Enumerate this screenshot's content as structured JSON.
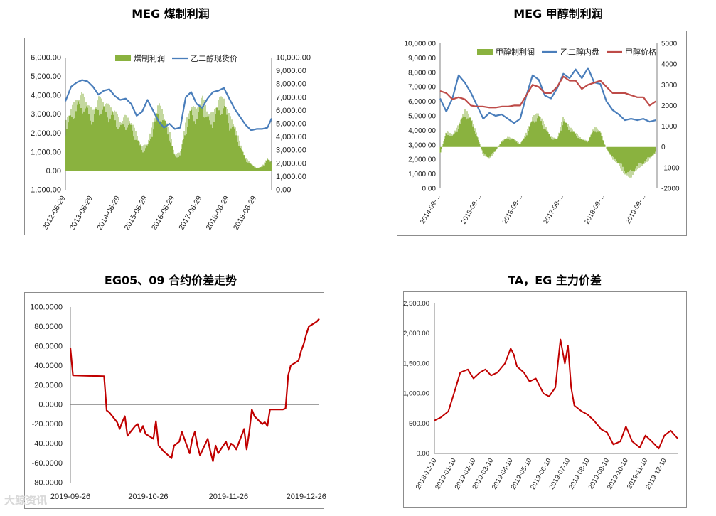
{
  "charts": [
    {
      "title": "MEG 煤制利润"
    },
    {
      "title": "MEG 甲醇制利润"
    },
    {
      "title": "EG05、09 合约价差走势"
    },
    {
      "title": "TA，EG 主力价差"
    }
  ],
  "watermark": "大鲸资讯",
  "chart_data": [
    {
      "type": "bar+line",
      "title": "MEG 煤制利润",
      "left_axis": {
        "ticks": [
          "6,000.00",
          "5,000.00",
          "4,000.00",
          "3,000.00",
          "2,000.00",
          "1,000.00",
          "0.00",
          "-1,000.00"
        ],
        "min": -1000,
        "max": 6000
      },
      "right_axis": {
        "ticks": [
          "10,000.00",
          "9,000.00",
          "8,000.00",
          "7,000.00",
          "6,000.00",
          "5,000.00",
          "4,000.00",
          "3,000.00",
          "2,000.00",
          "1,000.00",
          "0.00"
        ],
        "min": 0,
        "max": 10000
      },
      "x_ticks": [
        "2012-06-29",
        "2013-06-29",
        "2014-06-29",
        "2015-06-29",
        "2016-06-29",
        "2017-06-29",
        "2018-06-29",
        "2019-06-29"
      ],
      "x_range": [
        2012.49,
        2020.05
      ],
      "legend": [
        "煤制利润",
        "乙二醇现货价"
      ],
      "series": [
        {
          "name": "煤制利润",
          "kind": "bar",
          "axis": "left",
          "color": "#8ab23f",
          "x": [
            2012.49,
            2012.7,
            2012.9,
            2013.1,
            2013.3,
            2013.5,
            2013.7,
            2013.9,
            2014.1,
            2014.3,
            2014.5,
            2014.7,
            2014.9,
            2015.1,
            2015.3,
            2015.5,
            2015.7,
            2015.9,
            2016.1,
            2016.3,
            2016.5,
            2016.7,
            2016.9,
            2017.1,
            2017.3,
            2017.5,
            2017.7,
            2017.9,
            2018.1,
            2018.3,
            2018.5,
            2018.7,
            2018.9,
            2019.1,
            2019.3,
            2019.5,
            2019.7,
            2019.9,
            2020.05
          ],
          "y": [
            2600,
            3400,
            3900,
            4200,
            3700,
            3200,
            4000,
            3800,
            3500,
            3300,
            2700,
            3000,
            2700,
            2000,
            1300,
            1500,
            2600,
            3700,
            3100,
            2200,
            900,
            1000,
            2600,
            3600,
            3300,
            4100,
            3200,
            3100,
            3900,
            4000,
            3000,
            2500,
            1500,
            700,
            400,
            150,
            250,
            700,
            500
          ]
        },
        {
          "name": "乙二醇现货价",
          "kind": "line",
          "axis": "right",
          "color": "#4a7ebb",
          "x": [
            2012.49,
            2012.7,
            2012.9,
            2013.1,
            2013.3,
            2013.5,
            2013.7,
            2013.9,
            2014.1,
            2014.3,
            2014.5,
            2014.7,
            2014.9,
            2015.1,
            2015.3,
            2015.5,
            2015.7,
            2015.9,
            2016.1,
            2016.3,
            2016.5,
            2016.7,
            2016.9,
            2017.1,
            2017.3,
            2017.5,
            2017.7,
            2017.9,
            2018.1,
            2018.3,
            2018.5,
            2018.7,
            2018.9,
            2019.1,
            2019.3,
            2019.5,
            2019.7,
            2019.9,
            2020.05
          ],
          "y": [
            6700,
            7800,
            8100,
            8300,
            8200,
            7800,
            7200,
            7500,
            7600,
            7100,
            6800,
            6900,
            6500,
            5600,
            5900,
            6800,
            6000,
            5200,
            4700,
            5000,
            4600,
            4700,
            7000,
            7400,
            6500,
            6200,
            6900,
            7400,
            7500,
            7700,
            6900,
            6100,
            5500,
            4900,
            4500,
            4600,
            4600,
            4700,
            5400
          ]
        }
      ]
    },
    {
      "type": "bar+line",
      "title": "MEG 甲醇制利润",
      "left_axis": {
        "ticks": [
          "10,000.00",
          "9,000.00",
          "8,000.00",
          "7,000.00",
          "6,000.00",
          "5,000.00",
          "4,000.00",
          "3,000.00",
          "2,000.00",
          "1,000.00",
          "0.00"
        ],
        "min": 0,
        "max": 10000
      },
      "right_axis": {
        "ticks": [
          "5000",
          "4000",
          "3000",
          "2000",
          "1000",
          "0",
          "-1000",
          "-2000"
        ],
        "min": -2000,
        "max": 5000
      },
      "x_ticks": [
        "2014-09-...",
        "2015-09-...",
        "2016-09-...",
        "2017-09-...",
        "2018-09-...",
        "2019-09-..."
      ],
      "x_range": [
        2014.7,
        2019.98
      ],
      "legend": [
        "甲醇制利润",
        "乙二醇内盘",
        "甲醇价格"
      ],
      "series": [
        {
          "name": "甲醇制利润",
          "kind": "bar",
          "axis": "right",
          "color": "#8ab23f",
          "x": [
            2014.7,
            2014.85,
            2015.0,
            2015.15,
            2015.3,
            2015.45,
            2015.6,
            2015.75,
            2015.9,
            2016.05,
            2016.2,
            2016.35,
            2016.5,
            2016.65,
            2016.8,
            2016.95,
            2017.1,
            2017.25,
            2017.4,
            2017.55,
            2017.7,
            2017.85,
            2018.0,
            2018.15,
            2018.3,
            2018.45,
            2018.6,
            2018.75,
            2018.9,
            2019.05,
            2019.2,
            2019.35,
            2019.5,
            2019.65,
            2019.8,
            2019.95
          ],
          "y": [
            -400,
            800,
            600,
            1100,
            1900,
            1500,
            600,
            -400,
            -600,
            -200,
            300,
            500,
            400,
            150,
            700,
            1500,
            1700,
            1100,
            500,
            400,
            1500,
            1000,
            700,
            400,
            300,
            1000,
            800,
            -100,
            -600,
            -900,
            -1400,
            -1500,
            -1100,
            -900,
            -600,
            -300
          ]
        },
        {
          "name": "乙二醇内盘",
          "kind": "line",
          "axis": "left",
          "color": "#4a7ebb",
          "x": [
            2014.7,
            2014.85,
            2015.0,
            2015.15,
            2015.3,
            2015.45,
            2015.6,
            2015.75,
            2015.9,
            2016.05,
            2016.2,
            2016.35,
            2016.5,
            2016.65,
            2016.8,
            2016.95,
            2017.1,
            2017.25,
            2017.4,
            2017.55,
            2017.7,
            2017.85,
            2018.0,
            2018.15,
            2018.3,
            2018.45,
            2018.6,
            2018.75,
            2018.9,
            2019.05,
            2019.2,
            2019.35,
            2019.5,
            2019.65,
            2019.8,
            2019.95
          ],
          "y": [
            6200,
            5300,
            6200,
            7800,
            7300,
            6600,
            5700,
            4800,
            5200,
            5000,
            5100,
            4800,
            4500,
            4800,
            6400,
            7800,
            7500,
            6400,
            6200,
            6900,
            7900,
            7600,
            8200,
            7600,
            8300,
            7300,
            7200,
            6000,
            5400,
            5100,
            4700,
            4800,
            4700,
            4800,
            4600,
            4700
          ]
        },
        {
          "name": "甲醇价格",
          "kind": "line",
          "axis": "right",
          "color": "#be4b48",
          "x": [
            2014.7,
            2014.85,
            2015.0,
            2015.15,
            2015.3,
            2015.45,
            2015.6,
            2015.75,
            2015.9,
            2016.05,
            2016.2,
            2016.35,
            2016.5,
            2016.65,
            2016.8,
            2016.95,
            2017.1,
            2017.25,
            2017.4,
            2017.55,
            2017.7,
            2017.85,
            2018.0,
            2018.15,
            2018.3,
            2018.45,
            2018.6,
            2018.75,
            2018.9,
            2019.05,
            2019.2,
            2019.35,
            2019.5,
            2019.65,
            2019.8,
            2019.95
          ],
          "y": [
            2700,
            2600,
            2300,
            2400,
            2300,
            2000,
            1950,
            1950,
            1900,
            1900,
            1950,
            1950,
            2000,
            2000,
            2500,
            3000,
            2900,
            2600,
            2600,
            2900,
            3400,
            3200,
            3200,
            2800,
            3000,
            3100,
            3200,
            2900,
            2600,
            2600,
            2600,
            2500,
            2400,
            2400,
            2000,
            2200
          ]
        }
      ]
    },
    {
      "type": "line",
      "title": "EG05、09 合约价差走势",
      "y_ticks": [
        "100.0000",
        "80.0000",
        "60.0000",
        "40.0000",
        "20.0000",
        "0.0000",
        "-20.0000",
        "-40.0000",
        "-60.0000",
        "-80.0000"
      ],
      "ylim": [
        -80,
        100
      ],
      "x_ticks": [
        "2019-09-26",
        "2019-10-26",
        "2019-11-26",
        "2019-12-26"
      ],
      "series": [
        {
          "color": "#c00000",
          "x": [
            "2019-09-26",
            "2019-09-27",
            "2019-10-09",
            "2019-10-10",
            "2019-10-11",
            "2019-10-14",
            "2019-10-15",
            "2019-10-16",
            "2019-10-17",
            "2019-10-18",
            "2019-10-21",
            "2019-10-22",
            "2019-10-23",
            "2019-10-24",
            "2019-10-25",
            "2019-10-28",
            "2019-10-29",
            "2019-10-30",
            "2019-10-31",
            "2019-11-01",
            "2019-11-04",
            "2019-11-05",
            "2019-11-06",
            "2019-11-07",
            "2019-11-08",
            "2019-11-11",
            "2019-11-12",
            "2019-11-13",
            "2019-11-14",
            "2019-11-15",
            "2019-11-18",
            "2019-11-19",
            "2019-11-20",
            "2019-11-21",
            "2019-11-22",
            "2019-11-25",
            "2019-11-26",
            "2019-11-27",
            "2019-11-28",
            "2019-11-29",
            "2019-12-02",
            "2019-12-03",
            "2019-12-04",
            "2019-12-05",
            "2019-12-06",
            "2019-12-09",
            "2019-12-10",
            "2019-12-11",
            "2019-12-12",
            "2019-12-13",
            "2019-12-16",
            "2019-12-17",
            "2019-12-18",
            "2019-12-19",
            "2019-12-20",
            "2019-12-23",
            "2019-12-24",
            "2019-12-25",
            "2019-12-26",
            "2019-12-27",
            "2019-12-30",
            "2019-12-31"
          ],
          "y": [
            58,
            30,
            29,
            -6,
            -8,
            -18,
            -25,
            -18,
            -12,
            -32,
            -22,
            -20,
            -28,
            -22,
            -30,
            -35,
            -17,
            -42,
            -45,
            -48,
            -55,
            -42,
            -40,
            -38,
            -28,
            -50,
            -35,
            -28,
            -42,
            -52,
            -35,
            -48,
            -58,
            -42,
            -50,
            -38,
            -46,
            -40,
            -42,
            -46,
            -25,
            -46,
            -28,
            -5,
            -12,
            -20,
            -18,
            -22,
            -5,
            -5,
            -5,
            -5,
            -4,
            30,
            40,
            45,
            55,
            62,
            72,
            80,
            85,
            88
          ]
        }
      ]
    },
    {
      "type": "line",
      "title": "TA，EG 主力价差",
      "y_ticks": [
        "2,500.00",
        "2,000.00",
        "1,500.00",
        "1,000.00",
        "500.00",
        "0.00"
      ],
      "ylim": [
        0,
        2500
      ],
      "x_ticks": [
        "2018-12-10",
        "2019-01-10",
        "2019-02-10",
        "2019-03-10",
        "2019-04-10",
        "2019-05-10",
        "2019-06-10",
        "2019-07-10",
        "2019-08-10",
        "2019-09-10",
        "2019-10-10",
        "2019-11-10",
        "2019-12-10"
      ],
      "series": [
        {
          "color": "#c00000",
          "x": [
            "2018-12-10",
            "2018-12-20",
            "2019-01-01",
            "2019-01-10",
            "2019-01-20",
            "2019-02-01",
            "2019-02-10",
            "2019-02-20",
            "2019-03-01",
            "2019-03-10",
            "2019-03-20",
            "2019-04-01",
            "2019-04-10",
            "2019-04-15",
            "2019-04-20",
            "2019-05-01",
            "2019-05-10",
            "2019-05-20",
            "2019-06-01",
            "2019-06-10",
            "2019-06-20",
            "2019-06-28",
            "2019-07-05",
            "2019-07-10",
            "2019-07-15",
            "2019-07-20",
            "2019-08-01",
            "2019-08-10",
            "2019-08-20",
            "2019-09-01",
            "2019-09-10",
            "2019-09-20",
            "2019-10-01",
            "2019-10-10",
            "2019-10-20",
            "2019-11-01",
            "2019-11-10",
            "2019-11-20",
            "2019-12-01",
            "2019-12-10",
            "2019-12-20",
            "2019-12-31"
          ],
          "y": [
            550,
            600,
            700,
            1000,
            1350,
            1400,
            1250,
            1350,
            1400,
            1300,
            1350,
            1500,
            1750,
            1650,
            1450,
            1350,
            1200,
            1250,
            1000,
            950,
            1100,
            1900,
            1500,
            1800,
            1100,
            800,
            700,
            650,
            550,
            400,
            350,
            150,
            200,
            450,
            200,
            100,
            300,
            200,
            80,
            300,
            380,
            250
          ]
        }
      ]
    }
  ]
}
